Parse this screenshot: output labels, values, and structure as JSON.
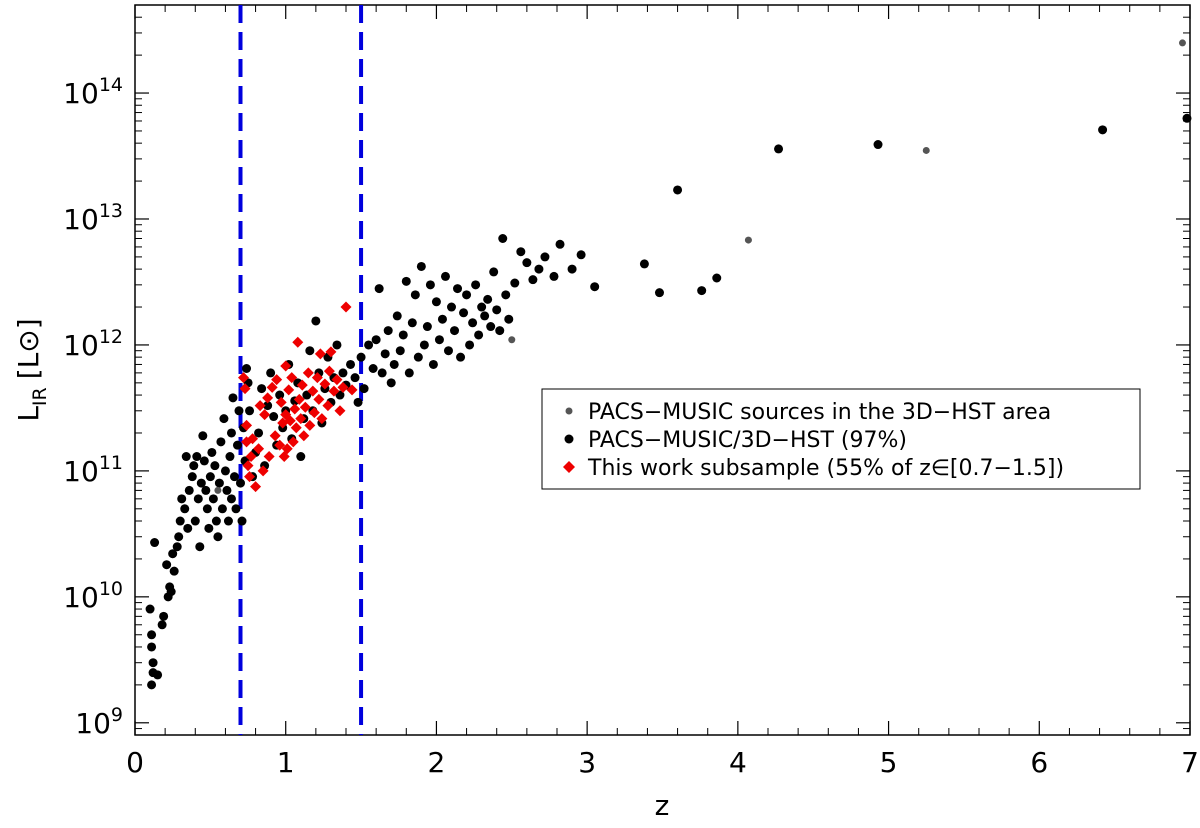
{
  "chart_data": {
    "type": "scatter",
    "xlabel": "z",
    "ylabel": "L",
    "ylabel_sub": "IR",
    "ylabel_unit": "[L⊙]",
    "xlim": [
      0,
      7
    ],
    "ylim": [
      800000000,
      500000000000000
    ],
    "yscale": "log",
    "grid": false,
    "legend_position": "right",
    "x_ticks": [
      0,
      1,
      2,
      3,
      4,
      5,
      6,
      7
    ],
    "x_tick_labels": [
      "0",
      "1",
      "2",
      "3",
      "4",
      "5",
      "6",
      "7"
    ],
    "y_ticks": [
      {
        "value": 1000000000,
        "base": "10",
        "exp": "9"
      },
      {
        "value": 10000000000,
        "base": "10",
        "exp": "10"
      },
      {
        "value": 100000000000,
        "base": "10",
        "exp": "11"
      },
      {
        "value": 1000000000000,
        "base": "10",
        "exp": "12"
      },
      {
        "value": 10000000000000,
        "base": "10",
        "exp": "13"
      },
      {
        "value": 100000000000000,
        "base": "10",
        "exp": "14"
      }
    ],
    "reference_lines": [
      {
        "x": 0.7,
        "color": "#0000dd",
        "style": "dashed"
      },
      {
        "x": 1.5,
        "color": "#0000dd",
        "style": "dashed"
      }
    ],
    "series": [
      {
        "name": "PACS−MUSIC sources in the 3D−HST area",
        "color": "#555555",
        "marker": "circle-small",
        "points": [
          [
            6.95,
            250000000000000.0
          ],
          [
            5.25,
            35000000000000.0
          ],
          [
            4.07,
            6800000000000.0
          ],
          [
            2.5,
            1100000000000.0
          ],
          [
            0.55,
            70000000000.0
          ]
        ]
      },
      {
        "name": "PACS−MUSIC/3D−HST (97%)",
        "color": "#000000",
        "marker": "circle",
        "points": [
          [
            0.1,
            8000000000.0
          ],
          [
            0.11,
            5000000000.0
          ],
          [
            0.11,
            4000000000.0
          ],
          [
            0.12,
            3000000000.0
          ],
          [
            0.12,
            2500000000.0
          ],
          [
            0.11,
            2000000000.0
          ],
          [
            0.15,
            2400000000.0
          ],
          [
            0.13,
            27000000000.0
          ],
          [
            0.18,
            6000000000.0
          ],
          [
            0.19,
            7000000000.0
          ],
          [
            0.21,
            18000000000.0
          ],
          [
            0.22,
            10000000000.0
          ],
          [
            0.23,
            12000000000.0
          ],
          [
            0.24,
            11000000000.0
          ],
          [
            0.25,
            22000000000.0
          ],
          [
            0.26,
            16000000000.0
          ],
          [
            0.28,
            25000000000.0
          ],
          [
            0.29,
            30000000000.0
          ],
          [
            0.3,
            40000000000.0
          ],
          [
            0.31,
            60000000000.0
          ],
          [
            0.33,
            50000000000.0
          ],
          [
            0.34,
            130000000000.0
          ],
          [
            0.35,
            35000000000.0
          ],
          [
            0.36,
            70000000000.0
          ],
          [
            0.38,
            90000000000.0
          ],
          [
            0.39,
            110000000000.0
          ],
          [
            0.4,
            40000000000.0
          ],
          [
            0.41,
            130000000000.0
          ],
          [
            0.42,
            60000000000.0
          ],
          [
            0.43,
            25000000000.0
          ],
          [
            0.44,
            80000000000.0
          ],
          [
            0.45,
            190000000000.0
          ],
          [
            0.46,
            120000000000.0
          ],
          [
            0.47,
            70000000000.0
          ],
          [
            0.48,
            50000000000.0
          ],
          [
            0.49,
            35000000000.0
          ],
          [
            0.5,
            90000000000.0
          ],
          [
            0.51,
            140000000000.0
          ],
          [
            0.52,
            60000000000.0
          ],
          [
            0.53,
            110000000000.0
          ],
          [
            0.54,
            40000000000.0
          ],
          [
            0.55,
            30000000000.0
          ],
          [
            0.56,
            80000000000.0
          ],
          [
            0.57,
            170000000000.0
          ],
          [
            0.58,
            50000000000.0
          ],
          [
            0.59,
            260000000000.0
          ],
          [
            0.6,
            100000000000.0
          ],
          [
            0.61,
            70000000000.0
          ],
          [
            0.62,
            40000000000.0
          ],
          [
            0.63,
            130000000000.0
          ],
          [
            0.64,
            200000000000.0
          ],
          [
            0.64,
            60000000000.0
          ],
          [
            0.65,
            380000000000.0
          ],
          [
            0.66,
            90000000000.0
          ],
          [
            0.67,
            50000000000.0
          ],
          [
            0.68,
            160000000000.0
          ],
          [
            0.69,
            300000000000.0
          ],
          [
            0.7,
            80000000000.0
          ],
          [
            0.71,
            40000000000.0
          ],
          [
            0.72,
            220000000000.0
          ],
          [
            0.73,
            120000000000.0
          ],
          [
            0.74,
            650000000000.0
          ],
          [
            0.75,
            500000000000.0
          ],
          [
            0.76,
            300000000000.0
          ],
          [
            0.78,
            90000000000.0
          ],
          [
            0.8,
            140000000000.0
          ],
          [
            0.82,
            200000000000.0
          ],
          [
            0.84,
            450000000000.0
          ],
          [
            0.86,
            110000000000.0
          ],
          [
            0.88,
            330000000000.0
          ],
          [
            0.9,
            600000000000.0
          ],
          [
            0.92,
            270000000000.0
          ],
          [
            0.94,
            160000000000.0
          ],
          [
            0.96,
            400000000000.0
          ],
          [
            0.98,
            220000000000.0
          ],
          [
            1.0,
            300000000000.0
          ],
          [
            1.02,
            700000000000.0
          ],
          [
            1.04,
            180000000000.0
          ],
          [
            1.06,
            360000000000.0
          ],
          [
            1.08,
            500000000000.0
          ],
          [
            1.1,
            130000000000.0
          ],
          [
            1.12,
            260000000000.0
          ],
          [
            1.14,
            400000000000.0
          ],
          [
            1.16,
            900000000000.0
          ],
          [
            1.18,
            300000000000.0
          ],
          [
            1.2,
            1550000000000.0
          ],
          [
            1.22,
            600000000000.0
          ],
          [
            1.24,
            240000000000.0
          ],
          [
            1.26,
            450000000000.0
          ],
          [
            1.28,
            800000000000.0
          ],
          [
            1.3,
            350000000000.0
          ],
          [
            1.32,
            550000000000.0
          ],
          [
            1.34,
            1000000000000.0
          ],
          [
            1.36,
            400000000000.0
          ],
          [
            1.38,
            600000000000.0
          ],
          [
            1.4,
            480000000000.0
          ],
          [
            1.43,
            700000000000.0
          ],
          [
            1.46,
            550000000000.0
          ],
          [
            1.48,
            350000000000.0
          ],
          [
            1.5,
            800000000000.0
          ],
          [
            1.52,
            450000000000.0
          ],
          [
            1.55,
            1000000000000.0
          ],
          [
            1.58,
            650000000000.0
          ],
          [
            1.6,
            1100000000000.0
          ],
          [
            1.62,
            2800000000000.0
          ],
          [
            1.64,
            600000000000.0
          ],
          [
            1.66,
            850000000000.0
          ],
          [
            1.68,
            1300000000000.0
          ],
          [
            1.7,
            500000000000.0
          ],
          [
            1.72,
            700000000000.0
          ],
          [
            1.74,
            1700000000000.0
          ],
          [
            1.76,
            900000000000.0
          ],
          [
            1.78,
            1200000000000.0
          ],
          [
            1.8,
            3200000000000.0
          ],
          [
            1.82,
            600000000000.0
          ],
          [
            1.84,
            1500000000000.0
          ],
          [
            1.86,
            2500000000000.0
          ],
          [
            1.88,
            800000000000.0
          ],
          [
            1.9,
            4200000000000.0
          ],
          [
            1.92,
            1000000000000.0
          ],
          [
            1.94,
            1400000000000.0
          ],
          [
            1.96,
            3000000000000.0
          ],
          [
            1.98,
            700000000000.0
          ],
          [
            2.0,
            2200000000000.0
          ],
          [
            2.02,
            1100000000000.0
          ],
          [
            2.04,
            1600000000000.0
          ],
          [
            2.06,
            3500000000000.0
          ],
          [
            2.08,
            900000000000.0
          ],
          [
            2.1,
            2000000000000.0
          ],
          [
            2.12,
            1300000000000.0
          ],
          [
            2.14,
            2800000000000.0
          ],
          [
            2.16,
            800000000000.0
          ],
          [
            2.18,
            1800000000000.0
          ],
          [
            2.2,
            2500000000000.0
          ],
          [
            2.22,
            1000000000000.0
          ],
          [
            2.24,
            1500000000000.0
          ],
          [
            2.26,
            3000000000000.0
          ],
          [
            2.28,
            1200000000000.0
          ],
          [
            2.3,
            2000000000000.0
          ],
          [
            2.32,
            1700000000000.0
          ],
          [
            2.34,
            2300000000000.0
          ],
          [
            2.36,
            1400000000000.0
          ],
          [
            2.38,
            3800000000000.0
          ],
          [
            2.4,
            1900000000000.0
          ],
          [
            2.42,
            1300000000000.0
          ],
          [
            2.44,
            7000000000000.0
          ],
          [
            2.46,
            2500000000000.0
          ],
          [
            2.48,
            1600000000000.0
          ],
          [
            2.52,
            3100000000000.0
          ],
          [
            2.56,
            5500000000000.0
          ],
          [
            2.6,
            4500000000000.0
          ],
          [
            2.64,
            3300000000000.0
          ],
          [
            2.68,
            4000000000000.0
          ],
          [
            2.72,
            5000000000000.0
          ],
          [
            2.78,
            3500000000000.0
          ],
          [
            2.82,
            6300000000000.0
          ],
          [
            2.9,
            4000000000000.0
          ],
          [
            2.96,
            5200000000000.0
          ],
          [
            3.05,
            2900000000000.0
          ],
          [
            3.38,
            4400000000000.0
          ],
          [
            3.48,
            2600000000000.0
          ],
          [
            3.6,
            17000000000000.0
          ],
          [
            3.76,
            2700000000000.0
          ],
          [
            3.86,
            3400000000000.0
          ],
          [
            4.27,
            36000000000000.0
          ],
          [
            4.93,
            39000000000000.0
          ],
          [
            6.42,
            51000000000000.0
          ],
          [
            6.98,
            63000000000000.0
          ]
        ]
      },
      {
        "name": "This work subsample (55% of z∈[0.7−1.5])",
        "color": "#ee0000",
        "marker": "diamond",
        "points": [
          [
            0.72,
            550000000000.0
          ],
          [
            0.73,
            450000000000.0
          ],
          [
            0.74,
            170000000000.0
          ],
          [
            0.74,
            230000000000.0
          ],
          [
            0.75,
            110000000000.0
          ],
          [
            0.76,
            90000000000.0
          ],
          [
            0.77,
            130000000000.0
          ],
          [
            0.78,
            180000000000.0
          ],
          [
            0.8,
            75000000000.0
          ],
          [
            0.82,
            150000000000.0
          ],
          [
            0.83,
            330000000000.0
          ],
          [
            0.85,
            100000000000.0
          ],
          [
            0.86,
            280000000000.0
          ],
          [
            0.88,
            380000000000.0
          ],
          [
            0.89,
            130000000000.0
          ],
          [
            0.91,
            460000000000.0
          ],
          [
            0.93,
            190000000000.0
          ],
          [
            0.94,
            530000000000.0
          ],
          [
            0.96,
            160000000000.0
          ],
          [
            0.97,
            350000000000.0
          ],
          [
            0.98,
            240000000000.0
          ],
          [
            0.99,
            130000000000.0
          ],
          [
            1.0,
            680000000000.0
          ],
          [
            1.0,
            280000000000.0
          ],
          [
            1.01,
            150000000000.0
          ],
          [
            1.02,
            440000000000.0
          ],
          [
            1.03,
            250000000000.0
          ],
          [
            1.04,
            550000000000.0
          ],
          [
            1.05,
            170000000000.0
          ],
          [
            1.06,
            310000000000.0
          ],
          [
            1.07,
            220000000000.0
          ],
          [
            1.08,
            1050000000000.0
          ],
          [
            1.09,
            370000000000.0
          ],
          [
            1.1,
            260000000000.0
          ],
          [
            1.11,
            480000000000.0
          ],
          [
            1.12,
            190000000000.0
          ],
          [
            1.13,
            320000000000.0
          ],
          [
            1.15,
            600000000000.0
          ],
          [
            1.16,
            230000000000.0
          ],
          [
            1.18,
            430000000000.0
          ],
          [
            1.19,
            290000000000.0
          ],
          [
            1.21,
            550000000000.0
          ],
          [
            1.22,
            370000000000.0
          ],
          [
            1.23,
            850000000000.0
          ],
          [
            1.24,
            260000000000.0
          ],
          [
            1.26,
            490000000000.0
          ],
          [
            1.28,
            330000000000.0
          ],
          [
            1.29,
            620000000000.0
          ],
          [
            1.3,
            880000000000.0
          ],
          [
            1.32,
            430000000000.0
          ],
          [
            1.34,
            530000000000.0
          ],
          [
            1.36,
            300000000000.0
          ],
          [
            1.38,
            460000000000.0
          ],
          [
            1.4,
            2000000000000.0
          ],
          [
            1.44,
            440000000000.0
          ]
        ]
      }
    ]
  }
}
